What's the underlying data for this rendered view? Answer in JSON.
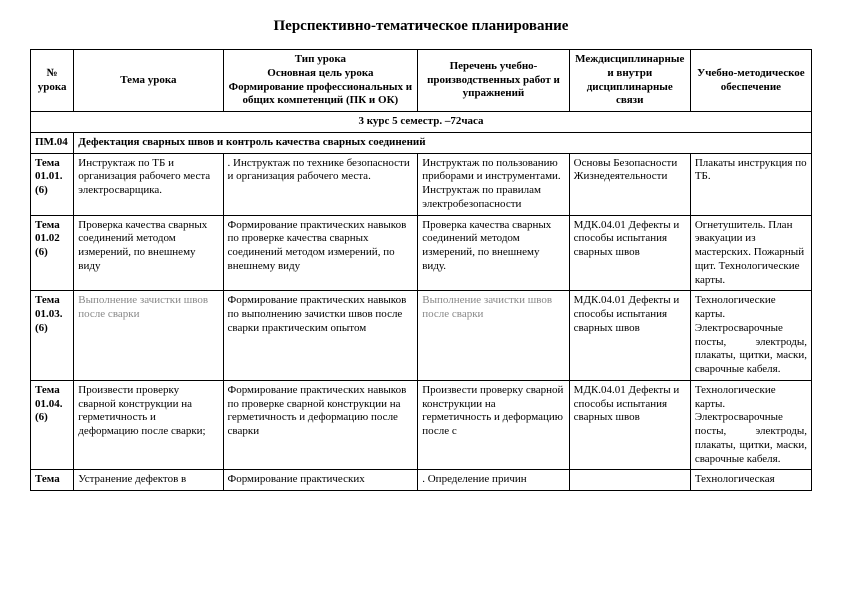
{
  "title": "Перспективно-тематическое планирование",
  "headers": {
    "c1": "№ урока",
    "c2": "Тема урока",
    "c3": "Тип урока\nОсновная цель урока\nФормирование профессиональных и общих компетенций (ПК и ОК)",
    "c4": "Перечень учебно-производственных работ и упражнений",
    "c5": "Междисциплинарные и внутри дисциплинарные связи",
    "c6": "Учебно-методическое обеспечение"
  },
  "course_line": "3 курс   5 семестр. –72часа",
  "section": {
    "code": "ПМ.04",
    "title": "Дефектация сварных швов и контроль качества сварных соединений"
  },
  "rows": [
    {
      "id": "Тема 01.01. (6)",
      "c2": "Инструктаж по  ТБ и организация рабочего места электросварщика.",
      "c3": ". Инструктаж по технике безопасности и организация рабочего места.",
      "c4": "Инструктаж по пользованию приборами и инструментами. Инструктаж по правилам электробезопасности",
      "c5": "Основы Безопасности Жизнедеятельности",
      "c6": "Плакаты инструкция по ТБ."
    },
    {
      "id": "Тема 01.02 (6)",
      "c2": "Проверка качества сварных соединений методом измерений, по внешнему виду",
      "c3": "Формирование практических навыков по проверке качества сварных соединений методом измерений, по внешнему виду",
      "c4": "  Проверка качества сварных соединений методом измерений, по внешнему виду.",
      "c5": "МДК.04.01 Дефекты и способы испытания сварных швов",
      "c6": "Огнетушитель. План эвакуации из мастерских. Пожарный щит. Технологические карты."
    },
    {
      "id": "Тема 01.03. (6)",
      "c2": "Выполнение зачистки швов после сварки",
      "c3": "Формирование практических навыков по выполнению зачистки швов после сварки практическим опытом",
      "c4": "  Выполнение зачистки швов после сварки",
      "c5": "МДК.04.01 Дефекты и способы испытания сварных швов",
      "c6": "Технологические карты. Электросварочные посты, электроды, плакаты, щитки, маски, сварочные кабеля.",
      "c6_just": true,
      "c2_gray": true,
      "c4_gray": true
    },
    {
      "id": "Тема 01.04. (6)",
      "c2": "Произвести проверку сварной конструкции на герметичность и деформацию после сварки;",
      "c3": "Формирование практических навыков по проверке сварной конструкции на герметичность и деформацию после сварки",
      "c4": "  Произвести проверку сварной конструкции на герметичность и деформацию после с",
      "c5": "МДК.04.01 Дефекты и способы испытания сварных швов",
      "c6": "Технологические карты. Электросварочные посты, электроды, плакаты, щитки, маски, сварочные кабеля.",
      "c6_just": true
    },
    {
      "id": "Тема",
      "c2": "Устранение дефектов в",
      "c3": "Формирование практических",
      "c4": ". Определение причин",
      "c5": "",
      "c6": "Технологическая",
      "last": true
    }
  ]
}
